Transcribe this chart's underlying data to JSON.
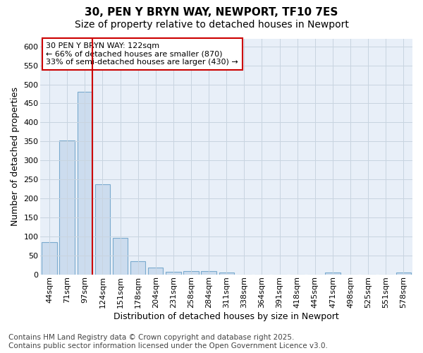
{
  "title": "30, PEN Y BRYN WAY, NEWPORT, TF10 7ES",
  "subtitle": "Size of property relative to detached houses in Newport",
  "xlabel": "Distribution of detached houses by size in Newport",
  "ylabel": "Number of detached properties",
  "categories": [
    "44sqm",
    "71sqm",
    "97sqm",
    "124sqm",
    "151sqm",
    "178sqm",
    "204sqm",
    "231sqm",
    "258sqm",
    "284sqm",
    "311sqm",
    "338sqm",
    "364sqm",
    "391sqm",
    "418sqm",
    "445sqm",
    "471sqm",
    "498sqm",
    "525sqm",
    "551sqm",
    "578sqm"
  ],
  "values": [
    85,
    352,
    480,
    237,
    96,
    35,
    17,
    7,
    8,
    8,
    5,
    0,
    0,
    0,
    0,
    0,
    4,
    0,
    0,
    0,
    4
  ],
  "bar_color": "#ccdcee",
  "bar_edge_color": "#7aaace",
  "redline_after_index": 2,
  "annotation_title": "30 PEN Y BRYN WAY: 122sqm",
  "annotation_line1": "← 66% of detached houses are smaller (870)",
  "annotation_line2": "33% of semi-detached houses are larger (430) →",
  "annotation_box_color": "#ffffff",
  "annotation_box_edge_color": "#cc0000",
  "redline_color": "#cc0000",
  "ylim_max": 620,
  "ytick_max": 600,
  "ytick_step": 50,
  "plot_bg_color": "#e8eff8",
  "figure_bg_color": "#ffffff",
  "grid_color": "#c8d4e0",
  "title_fontsize": 11,
  "subtitle_fontsize": 10,
  "xlabel_fontsize": 9,
  "ylabel_fontsize": 9,
  "tick_fontsize": 8,
  "annot_fontsize": 8,
  "footer_fontsize": 7.5,
  "footer": "Contains HM Land Registry data © Crown copyright and database right 2025.\nContains public sector information licensed under the Open Government Licence v3.0."
}
